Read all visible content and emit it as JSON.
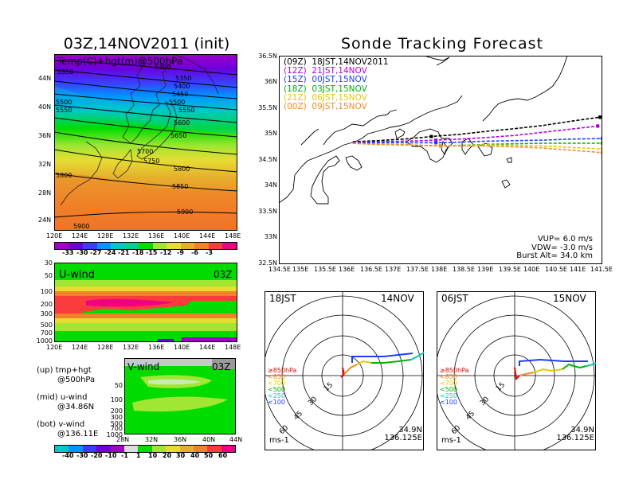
{
  "main": {
    "title_init": "03Z,14NOV2011 (init)",
    "title_main": "Sonde Tracking Forecast"
  },
  "map500": {
    "overlay_label": "Temp(C)+hgt(m)@500hPa",
    "x_ticks": [
      "120E",
      "124E",
      "128E",
      "132E",
      "136E",
      "140E",
      "144E",
      "148E"
    ],
    "y_ticks": [
      "44N",
      "40N",
      "36N",
      "32N",
      "28N",
      "24N"
    ],
    "contour_labels": [
      "5300",
      "5350",
      "5350",
      "5400",
      "5450",
      "5500",
      "5500",
      "5550",
      "5550",
      "5600",
      "5650",
      "5700",
      "5750",
      "5800",
      "5800",
      "5850",
      "5900",
      "5900"
    ],
    "colorbar_labels": [
      "-33",
      "-30",
      "-27",
      "-24",
      "-21",
      "-18",
      "-15",
      "-12",
      "-9",
      "-6",
      "-3"
    ],
    "colorbar_colors": [
      "#a000c8",
      "#6e00dc",
      "#3c3cff",
      "#0096ff",
      "#00c8c8",
      "#00d28c",
      "#00dc00",
      "#a0e632",
      "#e6dc32",
      "#e6af2d",
      "#f08228",
      "#fa3c3c",
      "#f00082"
    ]
  },
  "uwind": {
    "label": "U-wind",
    "time": "03Z",
    "y_ticks": [
      "30",
      "50",
      "100",
      "200",
      "300",
      "500",
      "700",
      "1000"
    ],
    "x_ticks": [
      "120E",
      "124E",
      "128E",
      "132E",
      "136E",
      "140E",
      "144E",
      "148E"
    ]
  },
  "vwind": {
    "label": "V-wind",
    "time": "03Z",
    "y_ticks": [
      "50",
      "100",
      "200",
      "300",
      "500",
      "700",
      "1000"
    ],
    "x_ticks": [
      "28N",
      "32N",
      "36N",
      "40N",
      "44N"
    ]
  },
  "legend_notes": {
    "up_l1": "(up) tmp+hgt",
    "up_l2": "@500hPa",
    "mid_l1": "(mid) u-wind",
    "mid_l2": "@34.86N",
    "bot_l1": "(bot) v-wind",
    "bot_l2": "@136.11E"
  },
  "wind_colorbar": {
    "labels": [
      "-40",
      "-30",
      "-20",
      "-10",
      "-1",
      "1",
      "10",
      "20",
      "30",
      "40",
      "50",
      "60"
    ],
    "colors": [
      "#00c8c8",
      "#0096ff",
      "#3c3cff",
      "#6e00dc",
      "#a000c8",
      "#dcdcdc",
      "#00dc00",
      "#a0e632",
      "#e6dc32",
      "#e6af2d",
      "#f08228",
      "#fa3c3c",
      "#f00082"
    ]
  },
  "tracking": {
    "legend": [
      {
        "label": "(09Z)  18JST,14NOV2011",
        "color": "#000000"
      },
      {
        "label": "(12Z)  21JST,14NOV",
        "color": "#b400d2"
      },
      {
        "label": "(15Z)  00JST,15NOV",
        "color": "#1e3cff"
      },
      {
        "label": "(18Z)  03JST,15NOV",
        "color": "#00b400"
      },
      {
        "label": "(21Z)  06JST,15NOV",
        "color": "#e6c800"
      },
      {
        "label": "(00Z)  09JST,15NOV",
        "color": "#f08c28"
      }
    ],
    "x_ticks": [
      "134.5E",
      "135E",
      "135.5E",
      "136E",
      "136.5E",
      "137E",
      "137.5E",
      "138E",
      "138.5E",
      "139E",
      "139.5E",
      "140E",
      "140.5E",
      "141E",
      "141.5E"
    ],
    "y_ticks": [
      "36.5N",
      "36N",
      "35.5N",
      "35N",
      "34.5N",
      "34N",
      "33.5N",
      "33N",
      "32.5N"
    ],
    "vup": "VUP= 6.0 m/s",
    "vdw": "VDW= -3.0 m/s",
    "burst": "Burst Alt= 34.0 km"
  },
  "polar_left": {
    "time": "18JST",
    "date": "14NOV",
    "rings": [
      "15",
      "30",
      "45",
      "60"
    ],
    "levels": [
      {
        "label": "≥850hPa",
        "color": "#e60000"
      },
      {
        "label": "<850",
        "color": "#f08c28"
      },
      {
        "label": "<700",
        "color": "#e6c800"
      },
      {
        "label": "<500",
        "color": "#00b400"
      },
      {
        "label": "<250",
        "color": "#00c8c8"
      },
      {
        "label": "<100",
        "color": "#1e3cff"
      }
    ],
    "lat": "34.9N",
    "lon": "136.125E",
    "unit": "ms-1"
  },
  "polar_right": {
    "time": "06JST",
    "date": "15NOV",
    "rings": [
      "15",
      "30",
      "45",
      "60"
    ],
    "levels": [
      {
        "label": "≥850hPa",
        "color": "#e60000"
      },
      {
        "label": "<850",
        "color": "#f08c28"
      },
      {
        "label": "<700",
        "color": "#e6c800"
      },
      {
        "label": "<500",
        "color": "#00b400"
      },
      {
        "label": "<250",
        "color": "#00c8c8"
      },
      {
        "label": "<100",
        "color": "#1e3cff"
      }
    ],
    "lat": "34.9N",
    "lon": "136.125E",
    "unit": "ms-1"
  },
  "chart_data": [
    {
      "type": "line",
      "title": "Sonde Tracking Forecast",
      "xlim": [
        134.5,
        141.5
      ],
      "ylim": [
        32.5,
        36.5
      ],
      "series": [
        {
          "name": "(09Z) 18JST,14NOV2011",
          "x": [
            136.1,
            136.6,
            137.2,
            137.6,
            137.8,
            138.4,
            139.0,
            139.6,
            140.2,
            140.8,
            141.45
          ],
          "y": [
            34.85,
            34.87,
            34.9,
            34.93,
            34.95,
            34.99,
            35.05,
            35.1,
            35.16,
            35.24,
            35.32
          ]
        },
        {
          "name": "(12Z) 21JST,14NOV",
          "x": [
            136.1,
            136.6,
            137.2,
            137.6,
            137.9,
            138.4,
            139.0,
            139.6,
            140.2,
            140.8,
            141.4
          ],
          "y": [
            34.84,
            34.85,
            34.86,
            34.87,
            34.88,
            34.9,
            34.93,
            34.97,
            35.03,
            35.09,
            35.15
          ]
        },
        {
          "name": "(15Z) 00JST,15NOV",
          "x": [
            136.1,
            136.6,
            137.2,
            137.6,
            137.9,
            138.4,
            139.0,
            139.6,
            140.2,
            140.8,
            141.5
          ],
          "y": [
            34.83,
            34.83,
            34.83,
            34.83,
            34.83,
            34.84,
            34.86,
            34.87,
            34.88,
            34.9,
            34.91
          ]
        },
        {
          "name": "(18Z) 03JST,15NOV",
          "x": [
            136.1,
            136.6,
            137.2,
            137.6,
            138.0,
            138.4,
            139.0,
            139.6,
            140.2,
            140.8,
            141.5
          ],
          "y": [
            34.82,
            34.8,
            34.79,
            34.78,
            34.77,
            34.78,
            34.8,
            34.81,
            34.82,
            34.82,
            34.82
          ]
        },
        {
          "name": "(21Z) 06JST,15NOV",
          "x": [
            136.1,
            136.6,
            137.2,
            137.6,
            138.0,
            138.4,
            139.0,
            139.6,
            140.2,
            140.8,
            141.5
          ],
          "y": [
            34.82,
            34.8,
            34.79,
            34.78,
            34.78,
            34.78,
            34.79,
            34.78,
            34.77,
            34.74,
            34.71
          ]
        },
        {
          "name": "(00Z) 09JST,15NOV",
          "x": [
            136.1,
            136.6,
            137.2,
            137.6,
            138.0,
            138.4,
            139.0,
            139.6,
            140.2,
            140.8,
            141.5
          ],
          "y": [
            34.82,
            34.8,
            34.79,
            34.78,
            34.77,
            34.77,
            34.77,
            34.75,
            34.73,
            34.69,
            34.64
          ]
        }
      ]
    }
  ]
}
